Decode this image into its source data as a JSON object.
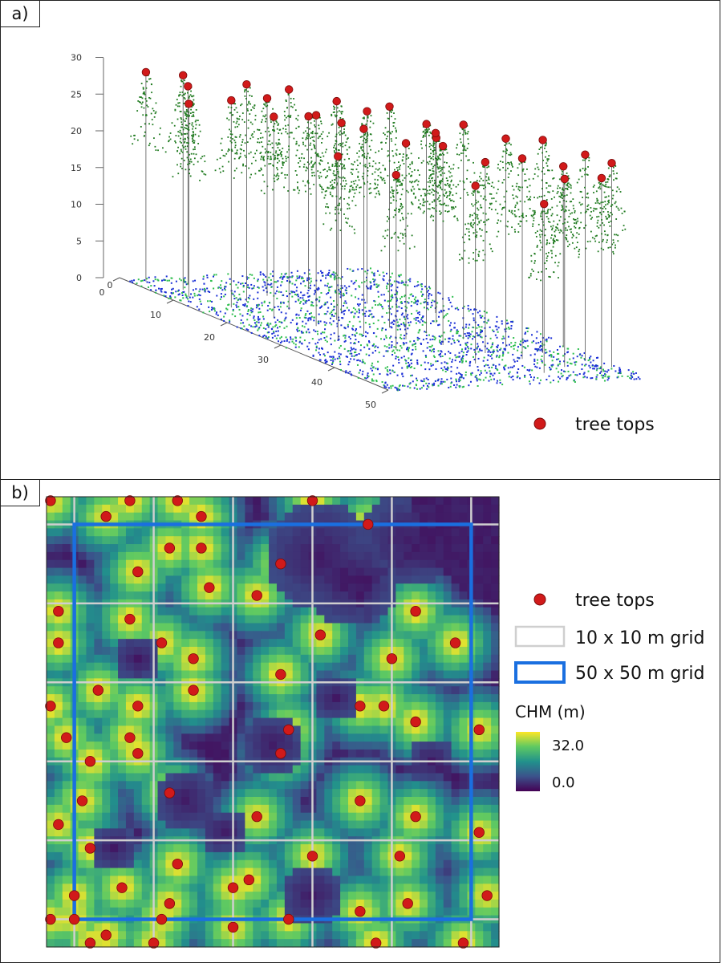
{
  "panels": {
    "a": {
      "label": "a)"
    },
    "b": {
      "label": "b)"
    }
  },
  "colors": {
    "tree_top": "#d11a1a",
    "canopy_points": "#1f7a1f",
    "ground_blue": "#1a2fd6",
    "ground_green": "#2fbf4f",
    "grid_10m": "#cfcfcf",
    "grid_50m": "#1a6fe0"
  },
  "chart_data": [
    {
      "type": "scatter",
      "subtype": "3d-point-cloud",
      "z_axis": {
        "ticks": [
          "0",
          "5",
          "10",
          "15",
          "20",
          "25",
          "30"
        ],
        "range": [
          0,
          30
        ]
      },
      "x_axis": {
        "ticks": [
          "0",
          "10",
          "20",
          "30",
          "40",
          "50"
        ],
        "range": [
          0,
          50
        ]
      },
      "y_axis": {
        "ticks": [
          "0"
        ],
        "range": [
          0,
          50
        ]
      },
      "legend": {
        "label": "tree tops",
        "placement": "bottom-right"
      },
      "tree_tops": [
        {
          "x": 2,
          "y": 3,
          "z": 28.5
        },
        {
          "x": 6,
          "y": 6,
          "z": 29.2
        },
        {
          "x": 4,
          "y": 9,
          "z": 27.0
        },
        {
          "x": 9,
          "y": 4,
          "z": 26.3
        },
        {
          "x": 12,
          "y": 12,
          "z": 29.6
        },
        {
          "x": 14,
          "y": 7,
          "z": 28.2
        },
        {
          "x": 16,
          "y": 16,
          "z": 30.0
        },
        {
          "x": 10,
          "y": 18,
          "z": 26.9
        },
        {
          "x": 19,
          "y": 10,
          "z": 27.4
        },
        {
          "x": 21,
          "y": 20,
          "z": 29.8
        },
        {
          "x": 23,
          "y": 14,
          "z": 28.7
        },
        {
          "x": 18,
          "y": 24,
          "z": 25.8
        },
        {
          "x": 25,
          "y": 26,
          "z": 30.1
        },
        {
          "x": 27,
          "y": 19,
          "z": 27.9
        },
        {
          "x": 28,
          "y": 30,
          "z": 28.5
        },
        {
          "x": 30,
          "y": 24,
          "z": 26.7
        },
        {
          "x": 31,
          "y": 34,
          "z": 29.2
        },
        {
          "x": 33,
          "y": 28,
          "z": 27.1
        },
        {
          "x": 24,
          "y": 36,
          "z": 25.2
        },
        {
          "x": 35,
          "y": 38,
          "z": 28.4
        },
        {
          "x": 37,
          "y": 32,
          "z": 26.0
        },
        {
          "x": 38,
          "y": 42,
          "z": 29.0
        },
        {
          "x": 40,
          "y": 36,
          "z": 27.3
        },
        {
          "x": 42,
          "y": 46,
          "z": 28.1
        },
        {
          "x": 44,
          "y": 40,
          "z": 25.6
        },
        {
          "x": 45,
          "y": 48,
          "z": 27.8
        },
        {
          "x": 47,
          "y": 44,
          "z": 26.5
        },
        {
          "x": 20,
          "y": 40,
          "z": 24.5
        },
        {
          "x": 15,
          "y": 32,
          "z": 26.2
        },
        {
          "x": 34,
          "y": 18,
          "z": 23.8
        },
        {
          "x": 29,
          "y": 12,
          "z": 25.0
        },
        {
          "x": 41,
          "y": 26,
          "z": 24.2
        },
        {
          "x": 8,
          "y": 28,
          "z": 23.5
        },
        {
          "x": 46,
          "y": 34,
          "z": 23.0
        },
        {
          "x": 36,
          "y": 48,
          "z": 24.6
        }
      ]
    },
    {
      "type": "heatmap",
      "subtype": "canopy-height-model",
      "legend": {
        "title": "CHM (m)",
        "max_label": "32.0",
        "min_label": "0.0",
        "range": [
          0.0,
          32.0
        ],
        "placement": "right"
      },
      "legend_items": [
        {
          "label": "tree tops"
        },
        {
          "label": "10 x 10 m grid"
        },
        {
          "label": "50 x 50 m grid"
        }
      ],
      "grid_10m_spacing_m": 10,
      "grid_50m_size_m": 50,
      "extent_m": [
        [
          -3.5,
          -3.5
        ],
        [
          53.5,
          53.5
        ]
      ],
      "tree_tops": [
        [
          -3,
          -3
        ],
        [
          7,
          -3
        ],
        [
          13,
          -3
        ],
        [
          30,
          -3
        ],
        [
          4,
          -1
        ],
        [
          16,
          -1
        ],
        [
          37,
          0
        ],
        [
          12,
          3
        ],
        [
          16,
          3
        ],
        [
          26,
          5
        ],
        [
          8,
          6
        ],
        [
          17,
          8
        ],
        [
          23,
          9
        ],
        [
          -2,
          11
        ],
        [
          7,
          12
        ],
        [
          43,
          11
        ],
        [
          -2,
          15
        ],
        [
          11,
          15
        ],
        [
          31,
          14
        ],
        [
          48,
          15
        ],
        [
          15,
          17
        ],
        [
          40,
          17
        ],
        [
          26,
          19
        ],
        [
          3,
          21
        ],
        [
          15,
          21
        ],
        [
          -3,
          23
        ],
        [
          8,
          23
        ],
        [
          36,
          23
        ],
        [
          39,
          23
        ],
        [
          43,
          25
        ],
        [
          7,
          27
        ],
        [
          -1,
          27
        ],
        [
          27,
          26
        ],
        [
          51,
          26
        ],
        [
          26,
          29
        ],
        [
          2,
          30
        ],
        [
          8,
          29
        ],
        [
          1,
          35
        ],
        [
          12,
          34
        ],
        [
          36,
          35
        ],
        [
          23,
          37
        ],
        [
          -2,
          38
        ],
        [
          43,
          37
        ],
        [
          2,
          41
        ],
        [
          13,
          43
        ],
        [
          30,
          42
        ],
        [
          41,
          42
        ],
        [
          22,
          45
        ],
        [
          0,
          47
        ],
        [
          12,
          48
        ],
        [
          6,
          46
        ],
        [
          36,
          49
        ],
        [
          20,
          46
        ],
        [
          11,
          50
        ],
        [
          42,
          48
        ],
        [
          -3,
          50
        ],
        [
          27,
          50
        ],
        [
          51,
          39
        ],
        [
          20,
          51
        ],
        [
          2,
          53
        ],
        [
          4,
          52
        ],
        [
          10,
          53
        ],
        [
          38,
          53
        ],
        [
          49,
          53
        ],
        [
          0,
          50
        ],
        [
          52,
          47
        ]
      ]
    }
  ]
}
